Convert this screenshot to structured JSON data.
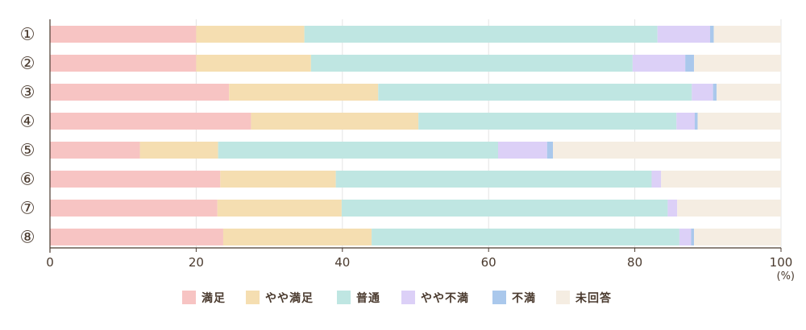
{
  "chart_data": {
    "type": "bar",
    "orientation": "horizontal",
    "stacked": true,
    "categories": [
      "①",
      "②",
      "③",
      "④",
      "⑤",
      "⑥",
      "⑦",
      "⑧"
    ],
    "series": [
      {
        "name": "満足",
        "color": "#f7c4c3",
        "values": [
          20,
          20,
          24.5,
          27.5,
          12.3,
          23.3,
          22.9,
          23.7
        ]
      },
      {
        "name": "やや満足",
        "color": "#f5deb1",
        "values": [
          14.8,
          15.7,
          20.4,
          22.9,
          10.7,
          15.8,
          17.0,
          20.3
        ]
      },
      {
        "name": "普通",
        "color": "#bfe6e2",
        "values": [
          48.3,
          44.0,
          42.9,
          35.3,
          38.3,
          43.2,
          44.6,
          42.1
        ]
      },
      {
        "name": "やや不満",
        "color": "#dcd0f7",
        "values": [
          7.2,
          7.2,
          2.9,
          2.5,
          6.7,
          1.3,
          1.3,
          1.6
        ]
      },
      {
        "name": "不満",
        "color": "#aac8ec",
        "values": [
          0.5,
          1.2,
          0.5,
          0.4,
          0.8,
          0.0,
          0.0,
          0.4
        ]
      },
      {
        "name": "未回答",
        "color": "#f5ede2",
        "values": [
          9.2,
          11.9,
          8.8,
          11.4,
          31.2,
          16.4,
          14.2,
          11.9
        ]
      }
    ],
    "x_ticks": [
      0,
      20,
      40,
      60,
      80,
      100
    ],
    "xlim": [
      0,
      100
    ],
    "x_unit": "(%)",
    "grid": true,
    "legend_position": "bottom"
  }
}
